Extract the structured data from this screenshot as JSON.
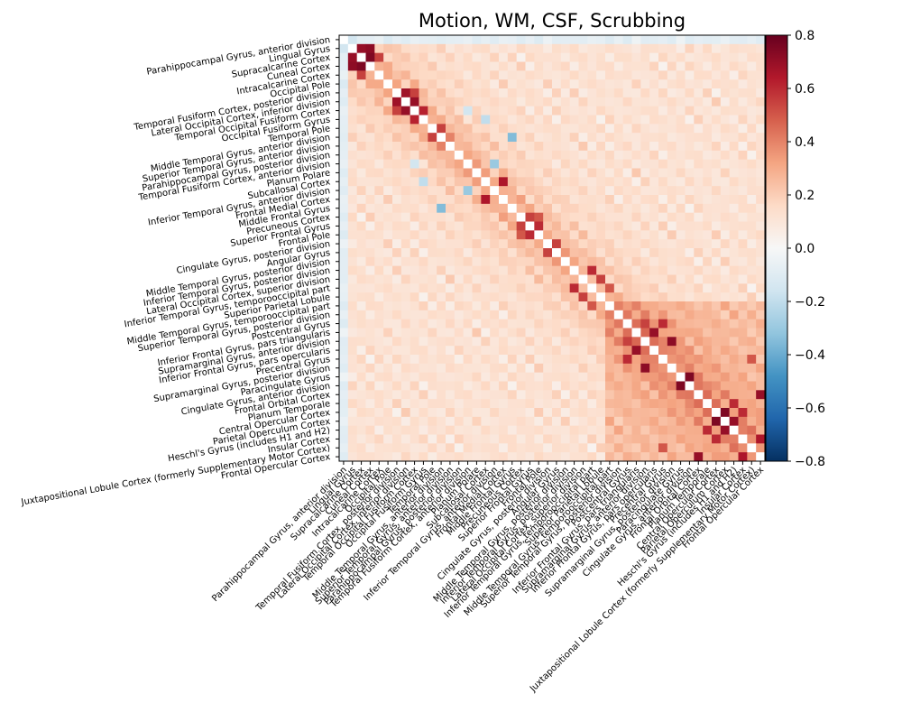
{
  "chart_data": {
    "type": "heatmap",
    "title": "Motion, WM, CSF, Scrubbing",
    "xlabel": "",
    "ylabel": "",
    "labels": [
      "Parahippocampal Gyrus, anterior division",
      "Lingual Gyrus",
      "Supracalcarine Cortex",
      "Cuneal Cortex",
      "Intracalcarine Cortex",
      "Occipital Pole",
      "Temporal Fusiform Cortex, posterior division",
      "Lateral Occipital Cortex, inferior division",
      "Temporal Occipital Fusiform Cortex",
      "Occipital Fusiform Gyrus",
      "Temporal Pole",
      "Middle Temporal Gyrus, anterior division",
      "Superior Temporal Gyrus, anterior division",
      "Parahippocampal Gyrus, posterior division",
      "Temporal Fusiform Cortex, anterior division",
      "Planum Polare",
      "Subcallosal Cortex",
      "Inferior Temporal Gyrus, anterior division",
      "Frontal Medial Cortex",
      "Middle Frontal Gyrus",
      "Precuneous Cortex",
      "Superior Frontal Gyrus",
      "Frontal Pole",
      "Cingulate Gyrus, posterior division",
      "Angular Gyrus",
      "Middle Temporal Gyrus, posterior division",
      "Inferior Temporal Gyrus, posterior division",
      "Lateral Occipital Cortex, superior division",
      "Inferior Temporal Gyrus, temporooccipital part",
      "Superior Parietal Lobule",
      "Middle Temporal Gyrus, temporooccipital part",
      "Superior Temporal Gyrus, posterior division",
      "Postcentral Gyrus",
      "Inferior Frontal Gyrus, pars triangularis",
      "Supramarginal Gyrus, anterior division",
      "Inferior Frontal Gyrus, pars opercularis",
      "Precentral Gyrus",
      "Supramarginal Gyrus, posterior division",
      "Paracingulate Gyrus",
      "Cingulate Gyrus, anterior division",
      "Frontal Orbital Cortex",
      "Planum Temporale",
      "Central Opercular Cortex",
      "Parietal Operculum Cortex",
      "Heschl's Gyrus (includes H1 and H2)",
      "Insular Cortex",
      "Juxtapositional Lobule Cortex (formerly Supplementary Motor Cortex)",
      "Frontal Opercular Cortex"
    ],
    "colorbar": {
      "range": [
        -0.8,
        0.8
      ],
      "ticks": [
        "0.8",
        "0.6",
        "0.4",
        "0.2",
        "0.0",
        "−0.2",
        "−0.4",
        "−0.6",
        "−0.8"
      ],
      "colormap": "RdBu_r"
    },
    "diagonal": "masked (white)",
    "strong_pairs": [
      [
        1,
        2,
        0.7
      ],
      [
        1,
        3,
        0.72
      ],
      [
        2,
        3,
        0.75
      ],
      [
        2,
        4,
        0.55
      ],
      [
        6,
        7,
        0.68
      ],
      [
        7,
        8,
        0.7
      ],
      [
        8,
        9,
        0.62
      ],
      [
        6,
        8,
        0.55
      ],
      [
        10,
        11,
        0.55
      ],
      [
        11,
        12,
        0.4
      ],
      [
        18,
        16,
        0.65
      ],
      [
        20,
        21,
        0.55
      ],
      [
        21,
        22,
        0.6
      ],
      [
        20,
        22,
        0.5
      ],
      [
        23,
        24,
        0.55
      ],
      [
        26,
        28,
        0.6
      ],
      [
        27,
        29,
        0.55
      ],
      [
        28,
        30,
        0.5
      ],
      [
        33,
        35,
        0.7
      ],
      [
        34,
        37,
        0.72
      ],
      [
        36,
        32,
        0.6
      ],
      [
        34,
        32,
        0.55
      ],
      [
        38,
        39,
        0.75
      ],
      [
        40,
        47,
        0.7
      ],
      [
        42,
        43,
        0.75
      ],
      [
        43,
        44,
        0.7
      ],
      [
        41,
        44,
        0.6
      ],
      [
        45,
        47,
        0.65
      ],
      [
        42,
        45,
        0.6
      ],
      [
        46,
        36,
        0.5
      ]
    ],
    "negative_pairs": [
      [
        0,
        1,
        -0.15
      ],
      [
        0,
        5,
        -0.12
      ],
      [
        17,
        14,
        -0.3
      ],
      [
        19,
        11,
        -0.35
      ],
      [
        16,
        9,
        -0.2
      ],
      [
        15,
        0,
        -0.1
      ],
      [
        14,
        8,
        -0.15
      ]
    ]
  }
}
